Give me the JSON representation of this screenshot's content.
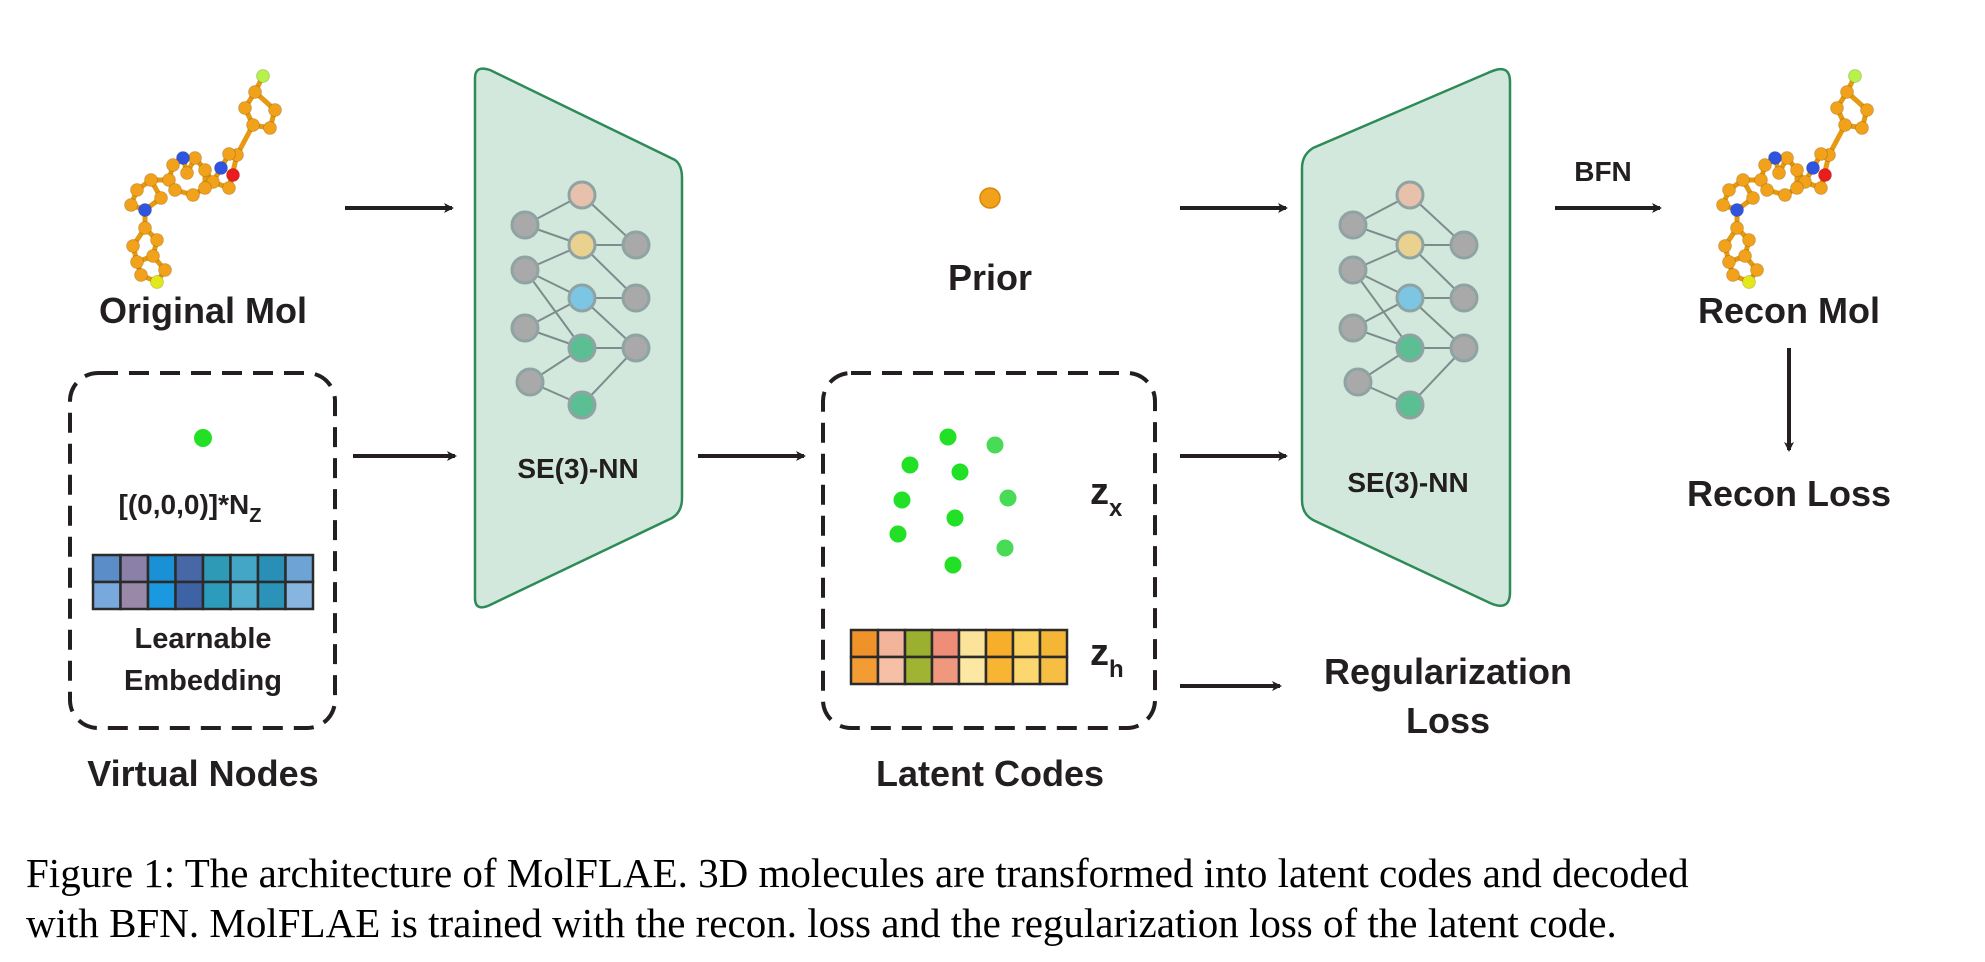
{
  "labels": {
    "original_mol": "Original Mol",
    "virtual_nodes": "Virtual Nodes",
    "virtual_coords_main": "[(0,0,0)]*N",
    "virtual_coords_sub": "Z",
    "learnable_line1": "Learnable",
    "learnable_line2": "Embedding",
    "encoder": "SE(3)-NN",
    "prior": "Prior",
    "zx_main": "z",
    "zx_sub": "x",
    "zh_main": "z",
    "zh_sub": "h",
    "latent_codes": "Latent Codes",
    "decoder": "SE(3)-NN",
    "bfn": "BFN",
    "recon_mol": "Recon Mol",
    "recon_loss": "Recon Loss",
    "reg_line1": "Regularization",
    "reg_line2": "Loss"
  },
  "caption": {
    "line1": "Figure 1: The architecture of MolFLAE. 3D molecules are transformed into latent codes and decoded",
    "line2": "with BFN. MolFLAE is trained with the recon. loss and the regularization loss of the latent code."
  },
  "colors": {
    "network_fill": "#d2e8dd",
    "network_stroke": "#2e8b57",
    "node_gray": "#a9a9a9",
    "node_peach": "#e7c1ac",
    "node_yellow": "#e9d190",
    "node_blue": "#7cc6e4",
    "node_green": "#5cbf94",
    "latent_green": "#22e026",
    "prior_orange": "#f2a11a",
    "arrow": "#231f20",
    "embedding_grid": [
      [
        "#5b8ec9",
        "#8a80a8",
        "#1a90d5",
        "#4767a6",
        "#2e9ab5",
        "#44a6c7",
        "#2a8fb6",
        "#6ea3d6"
      ],
      [
        "#79a9dc",
        "#9a88a8",
        "#1a98e0",
        "#3e63a5",
        "#2c9cbc",
        "#52b0ce",
        "#2b92b8",
        "#87b5e0"
      ]
    ],
    "zh_grid": [
      [
        "#f0922a",
        "#f3b49c",
        "#9ab02e",
        "#ef8e78",
        "#fbe49a",
        "#f7ae2a",
        "#fbd260",
        "#f5b636"
      ],
      [
        "#f29c33",
        "#f5c0a5",
        "#a1b333",
        "#f0987d",
        "#fce7a3",
        "#f8b433",
        "#fcd770",
        "#f7be44"
      ]
    ]
  }
}
